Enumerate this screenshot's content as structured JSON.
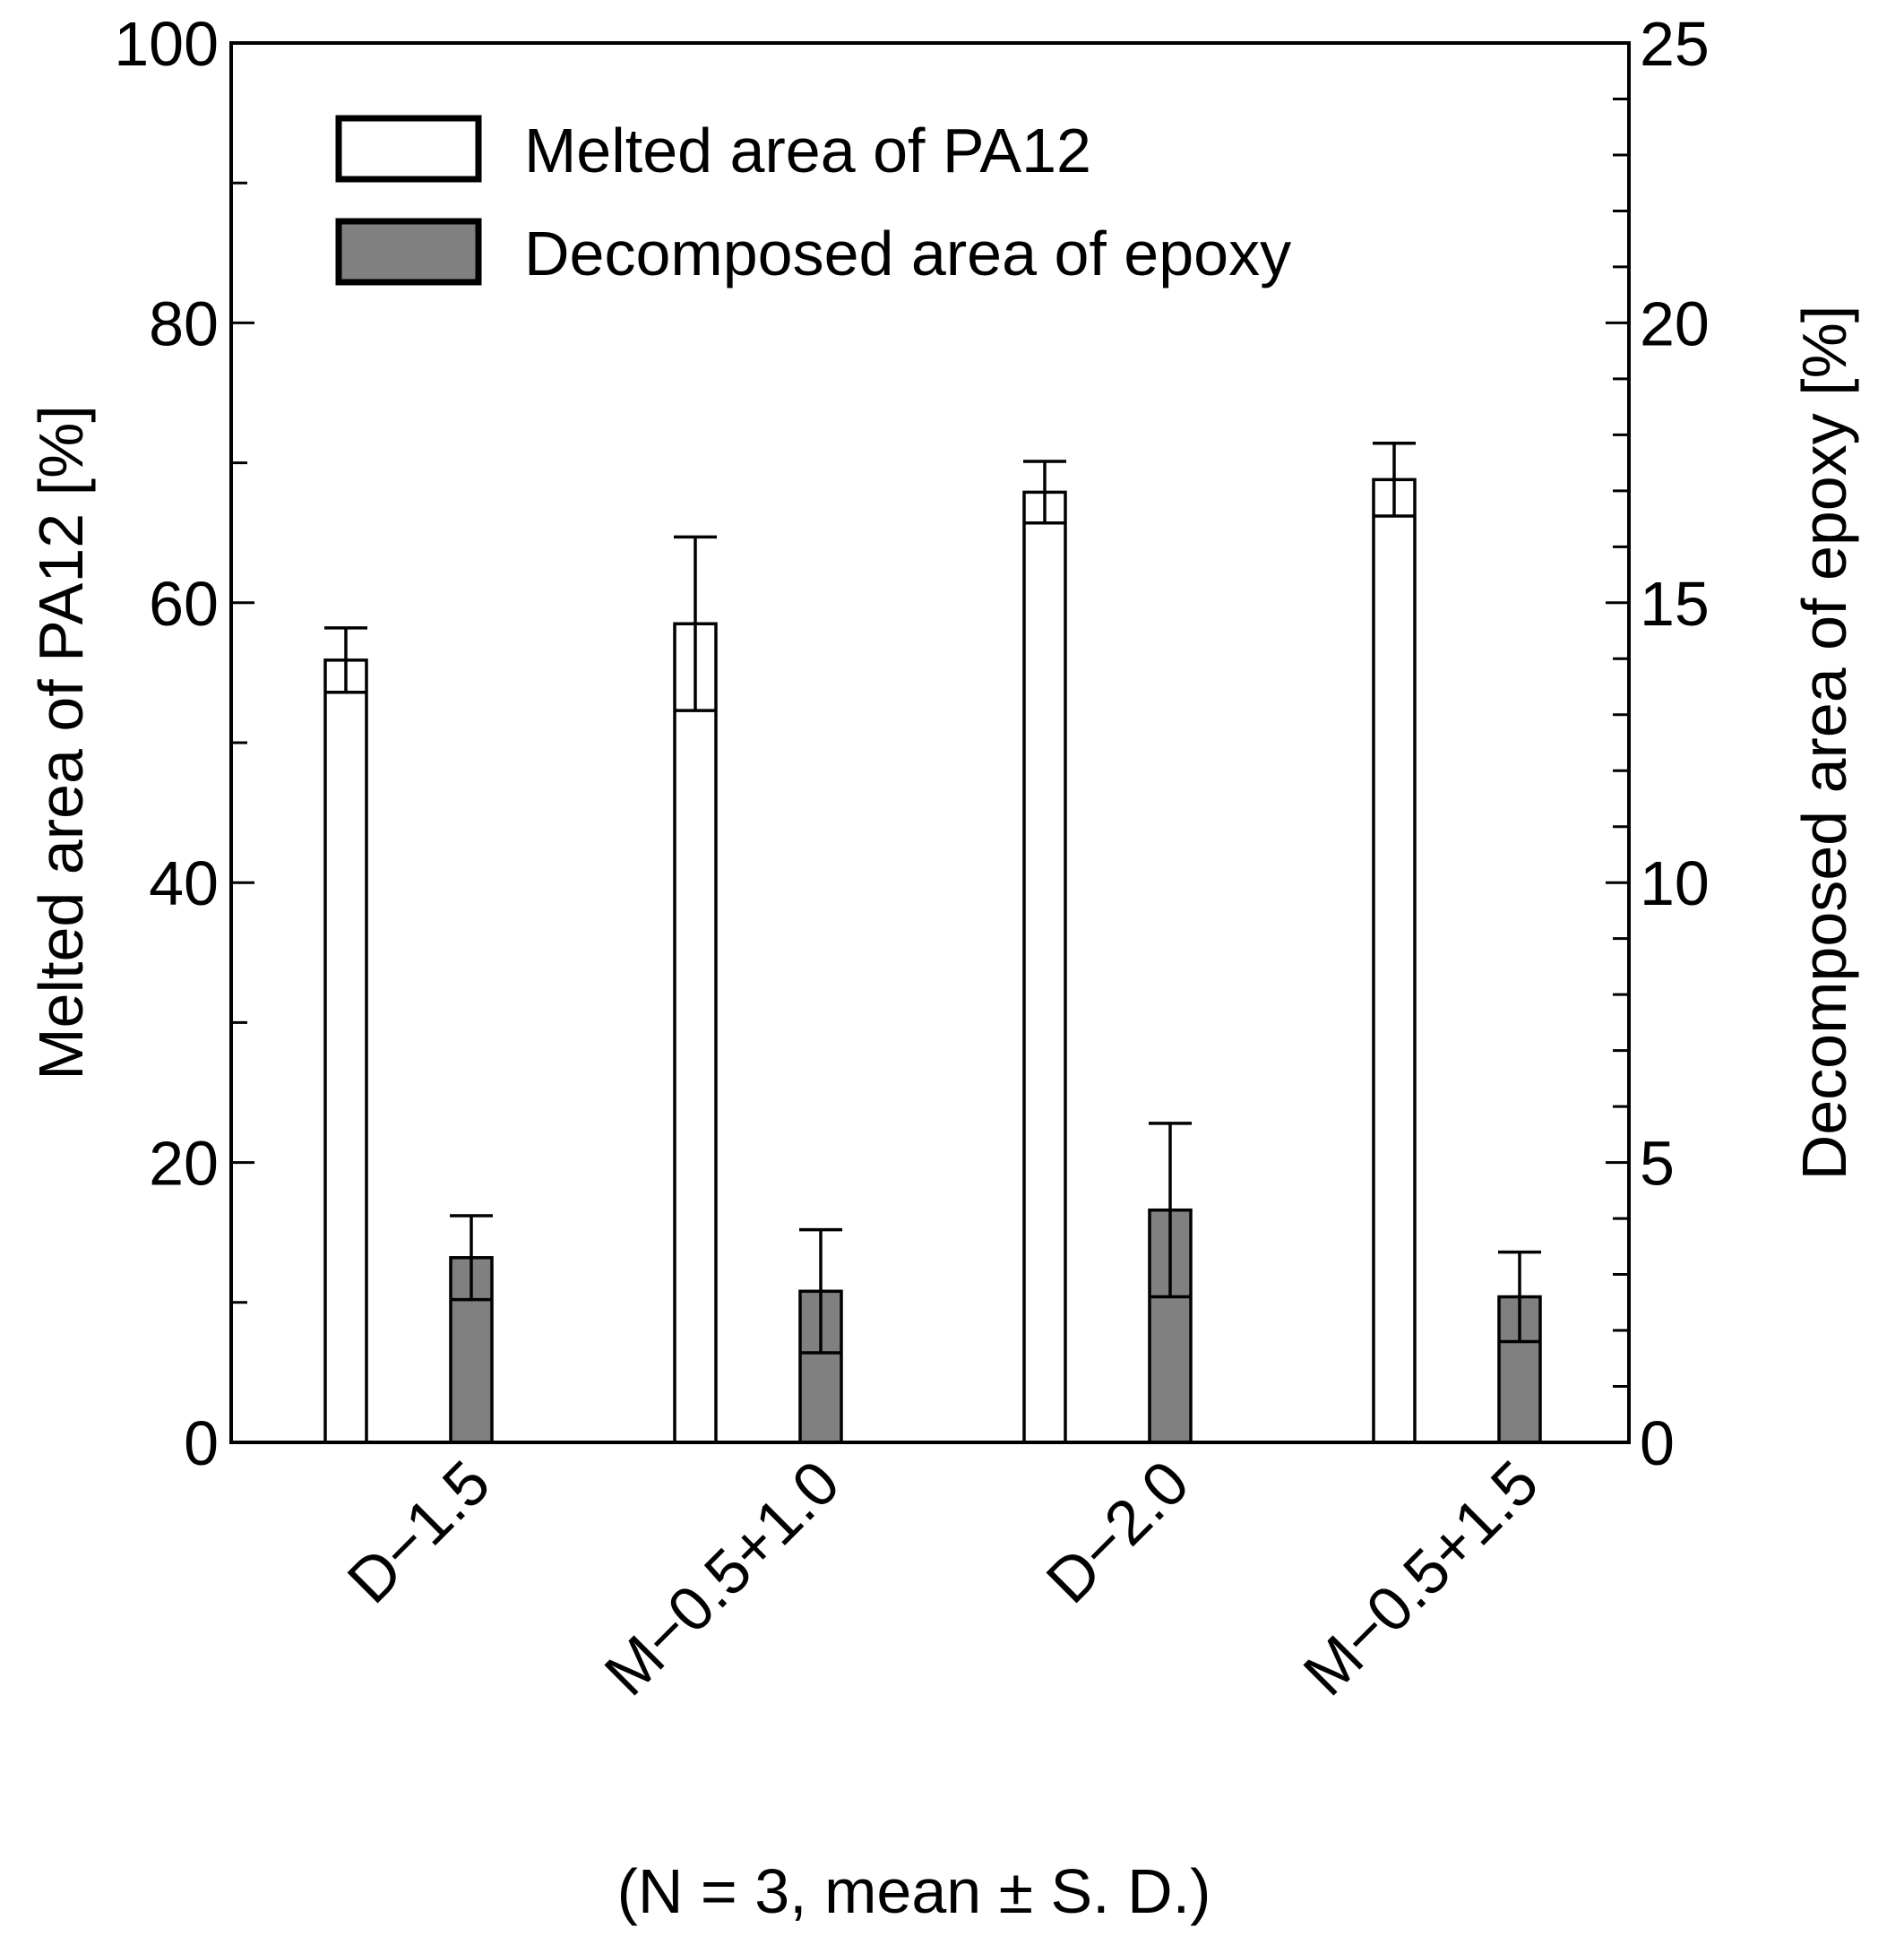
{
  "chart_data": {
    "type": "bar",
    "categories": [
      "D−1.5",
      "M−0.5+1.0",
      "D−2.0",
      "M−0.5+1.5"
    ],
    "series": [
      {
        "name": "Melted area of PA12",
        "axis": "left",
        "values": [
          55.9,
          58.5,
          67.9,
          68.8
        ],
        "errors": [
          2.3,
          6.2,
          2.2,
          2.6
        ],
        "color": "#ffffff"
      },
      {
        "name": "Decomposed area of epoxy",
        "axis": "right",
        "values": [
          3.3,
          2.7,
          4.15,
          2.6
        ],
        "errors": [
          0.75,
          1.1,
          1.55,
          0.8
        ],
        "color": "#808080"
      }
    ],
    "ylabel": "Melted area of PA12 [%]",
    "ylabel_right": "Decomposed area of epoxy [%]",
    "ylim": [
      0,
      100
    ],
    "ylim_right": [
      0,
      25
    ],
    "yticks": [
      "0",
      "20",
      "40",
      "60",
      "80",
      "100"
    ],
    "yticks_right": [
      "0",
      "5",
      "10",
      "15",
      "20",
      "25"
    ],
    "legend_position": "top-left",
    "grid": false,
    "footnote": "(N = 3, mean ± S. D.)"
  }
}
